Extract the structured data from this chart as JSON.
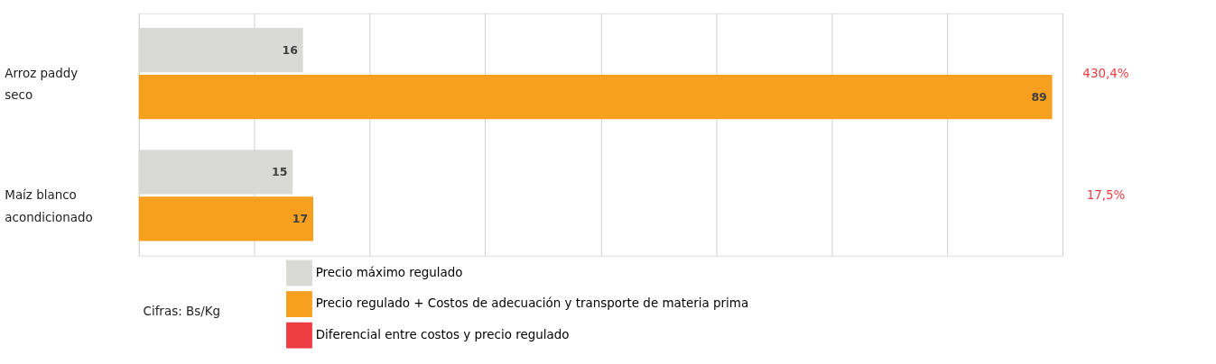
{
  "chart_data": {
    "type": "bar",
    "orientation": "horizontal",
    "categories": [
      "Arroz paddy seco",
      "Maíz blanco acondicionado"
    ],
    "series": [
      {
        "name": "Precio máximo regulado",
        "color": "#d9d9d6",
        "values": [
          16,
          15
        ]
      },
      {
        "name": "Precio regulado + Costos de adecuación y transporte de materia prima",
        "color": "#f7a01f",
        "values": [
          89,
          17
        ]
      },
      {
        "name": "Diferencial entre costos y precio regulado",
        "color": "#ee3d42",
        "values": [
          null,
          null
        ],
        "value_labels": [
          "430,4%",
          "17,5%"
        ]
      }
    ],
    "xlim": [
      0,
      90
    ],
    "xticks": [
      {
        "value": 0,
        "label": null
      },
      {
        "value": 11.25,
        "label": null
      },
      {
        "value": 22.5,
        "label": null
      },
      {
        "value": 33.75,
        "label": null
      },
      {
        "value": 45,
        "label": null
      },
      {
        "value": 56.25,
        "label": null
      },
      {
        "value": 67.5,
        "label": null
      },
      {
        "value": 78.75,
        "label": null
      },
      {
        "value": 90,
        "label": null
      }
    ],
    "tick_labels": "y",
    "grid": "x",
    "data_labels": true,
    "legend": "bottom",
    "annotations": [
      "Cifras: Bs/Kg"
    ]
  }
}
